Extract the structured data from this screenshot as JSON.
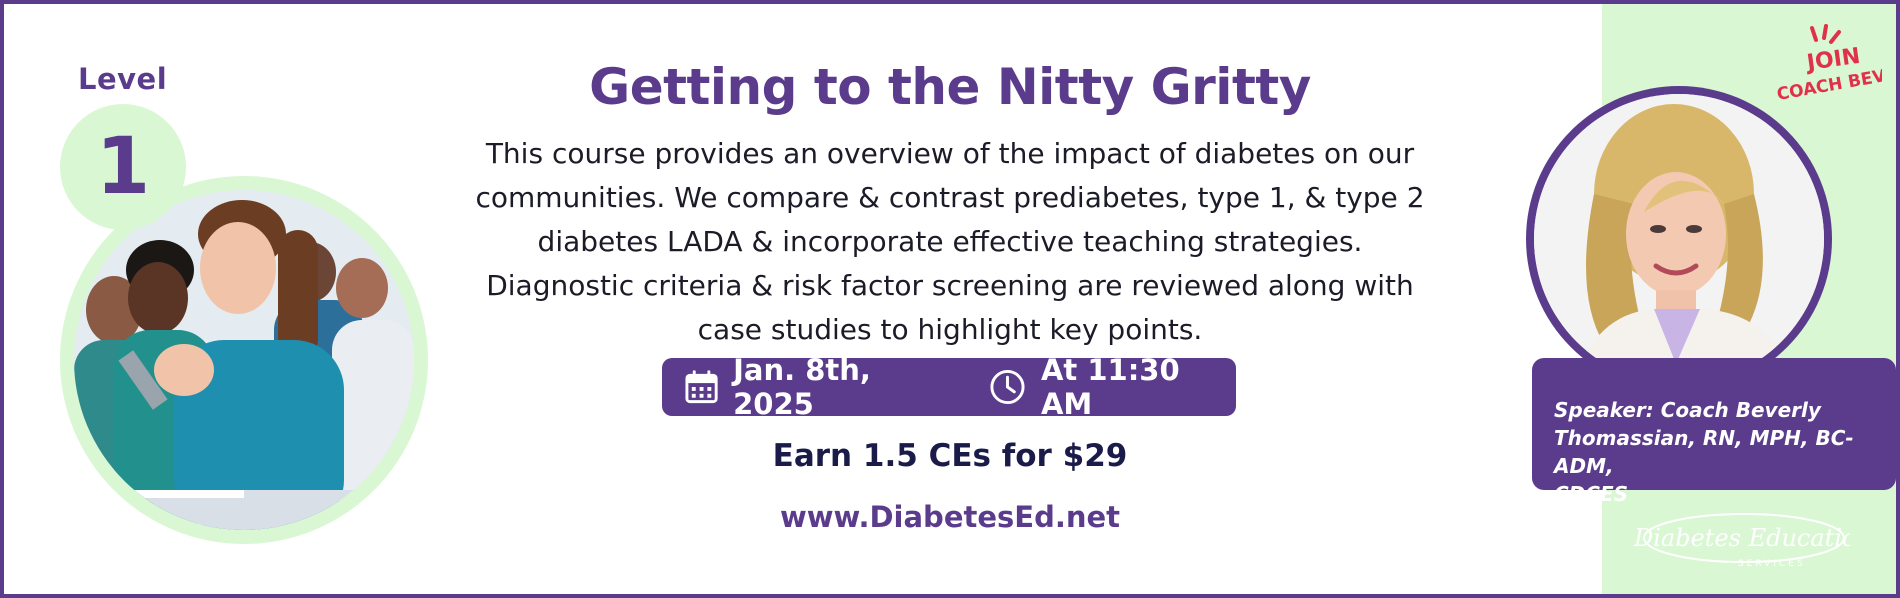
{
  "level": {
    "label": "Level",
    "number": "1"
  },
  "title": "Getting to the Nitty Gritty",
  "description_lines": [
    "This course provides an overview of the impact of diabetes on our",
    "communities. We compare & contrast prediabetes, type 1, & type 2",
    "diabetes LADA & incorporate effective teaching strategies.",
    "Diagnostic criteria & risk factor screening are reviewed along with",
    "case studies to highlight key points."
  ],
  "event": {
    "date": "Jan. 8th, 2025",
    "time": "At 11:30 AM"
  },
  "earn": "Earn 1.5 CEs for $29",
  "website": "www.DiabetesEd.net",
  "join_badge": {
    "line1": "JOIN",
    "line2": "COACH BEV"
  },
  "speaker": {
    "lines": [
      "Speaker: Coach Beverly",
      "Thomassian, RN, MPH, BC-ADM,",
      "CDCES"
    ]
  },
  "logo": {
    "line1": "Diabetes Education",
    "line2": "SERVICES"
  },
  "colors": {
    "brand_purple": "#5b3b8c",
    "mint": "#d9f7d3",
    "join_red": "#e0314b",
    "text_dark": "#1c1c28"
  },
  "icons": [
    "calendar-icon",
    "clock-icon"
  ]
}
